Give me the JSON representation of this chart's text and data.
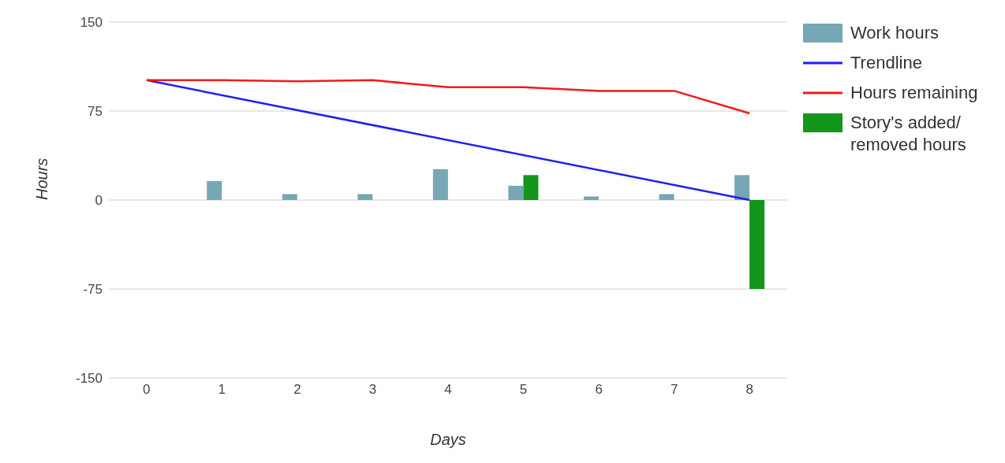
{
  "chart_data": {
    "type": "bar",
    "xlabel": "Days",
    "ylabel": "Hours",
    "categories": [
      "0",
      "1",
      "2",
      "3",
      "4",
      "5",
      "6",
      "7",
      "8"
    ],
    "series": [
      {
        "name": "Work hours",
        "color": "#76a7b4",
        "values": [
          null,
          16,
          5,
          5,
          26,
          12,
          3,
          5,
          21
        ]
      },
      {
        "name": "Trendline",
        "type": "line",
        "color": "#1e1ef0",
        "values": [
          101,
          null,
          null,
          null,
          null,
          null,
          null,
          null,
          0
        ]
      },
      {
        "name": "Hours remaining",
        "type": "line",
        "color": "#f21a1a",
        "values": [
          101,
          101,
          100,
          101,
          95,
          95,
          92,
          92,
          73
        ]
      },
      {
        "name": "Story's added/ removed hours",
        "color": "#12961c",
        "values": [
          null,
          null,
          null,
          null,
          null,
          21,
          null,
          null,
          -75
        ]
      }
    ],
    "ylim": [
      -150,
      150
    ],
    "yticks": [
      -150,
      -75,
      0,
      75,
      150
    ],
    "grid": "y",
    "legend": "top right",
    "marker": "none",
    "line_style": "solid"
  }
}
